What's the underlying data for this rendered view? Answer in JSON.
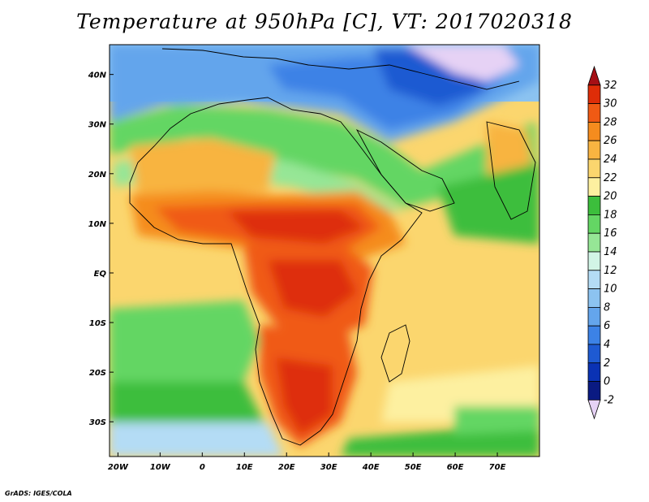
{
  "title": "Temperature at 950hPa [C], VT: 2017020318",
  "credit": "GrADS: IGES/COLA",
  "map": {
    "lon_labels": [
      "20W",
      "10W",
      "0",
      "10E",
      "20E",
      "30E",
      "40E",
      "50E",
      "60E",
      "70E"
    ],
    "lat_labels": [
      "40N",
      "30N",
      "20N",
      "10N",
      "EQ",
      "10S",
      "20S",
      "30S"
    ],
    "lon_range": [
      -22,
      80
    ],
    "lat_range": [
      -37,
      46
    ]
  },
  "colorbar": {
    "levels": [
      "32",
      "30",
      "28",
      "26",
      "24",
      "22",
      "20",
      "18",
      "16",
      "14",
      "12",
      "10",
      "8",
      "6",
      "4",
      "2",
      "0",
      "-2"
    ],
    "colors": [
      "#a50f15",
      "#de2d08",
      "#f05a14",
      "#f58c1e",
      "#f8b441",
      "#fbd66e",
      "#fdf0a0",
      "#3cbe3c",
      "#64d664",
      "#96e696",
      "#d2f5e6",
      "#b4dcf5",
      "#8cc3f0",
      "#64a5ec",
      "#3c82e6",
      "#1e5ad2",
      "#0a32b4",
      "#0a1a82",
      "#e6d2f5"
    ]
  }
}
